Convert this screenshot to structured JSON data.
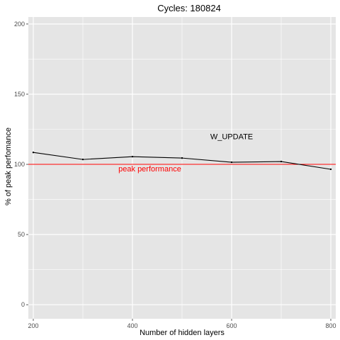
{
  "chart_data": {
    "type": "line",
    "title": "Cycles:  180824",
    "xlabel": "Number of hidden layers",
    "ylabel": "% of peak perfomance",
    "xlim": [
      190,
      810
    ],
    "ylim": [
      -10,
      205
    ],
    "x_ticks": [
      200,
      400,
      600,
      800
    ],
    "y_ticks": [
      0,
      50,
      100,
      150,
      200
    ],
    "grid": true,
    "x": [
      200,
      300,
      400,
      500,
      600,
      700,
      800
    ],
    "series": [
      {
        "values": [
          108.5,
          103.5,
          105.5,
          104.5,
          101.5,
          102.0,
          96.5
        ],
        "color": "#000000"
      }
    ],
    "reference_line": {
      "y": 100,
      "color": "#ff0000",
      "label": "peak performance"
    },
    "annotations": [
      {
        "text": "W_UPDATE",
        "x": 600,
        "y": 118,
        "color": "#000000"
      },
      {
        "text": "peak performance",
        "x": 435,
        "y": 95,
        "color": "#ff0000"
      }
    ],
    "theme": {
      "panel_bg": "#e5e5e5",
      "grid_major": "#ffffff"
    }
  }
}
